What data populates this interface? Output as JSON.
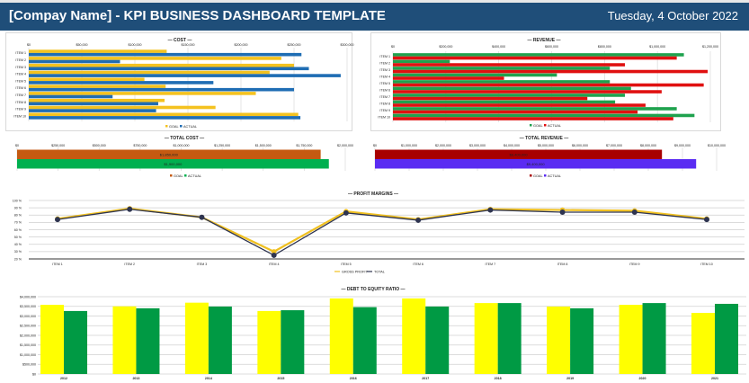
{
  "header": {
    "title": "[Compay Name] - KPI BUSINESS DASHBOARD TEMPLATE",
    "date": "Tuesday, 4 October 2022",
    "background": "#1f4e79"
  },
  "chart_data": [
    {
      "id": "cost",
      "type": "bar",
      "orientation": "horizontal",
      "title": "— COST —",
      "categories": [
        "ITEM 1",
        "ITEM 2",
        "ITEM 3",
        "ITEM 4",
        "ITEM 5",
        "ITEM 6",
        "ITEM 7",
        "ITEM 8",
        "ITEM 9",
        "ITEM 10"
      ],
      "series": [
        {
          "name": "GOAL",
          "color": "#f4c21f",
          "values": [
            130000,
            238000,
            250000,
            227000,
            109000,
            129000,
            214000,
            128000,
            176000,
            254000
          ]
        },
        {
          "name": "ACTUAL",
          "color": "#1f6db4",
          "values": [
            257000,
            86000,
            264000,
            294000,
            174000,
            250000,
            79000,
            122000,
            120000,
            256000
          ]
        }
      ],
      "xlim": [
        0,
        300000
      ],
      "ticks": [
        0,
        50000,
        100000,
        150000,
        200000,
        250000,
        300000
      ],
      "tick_labels": [
        "$0",
        "$50,000",
        "$100,000",
        "$150,000",
        "$200,000",
        "$250,000",
        "$300,000"
      ],
      "grid": true,
      "legend": "bottom"
    },
    {
      "id": "revenue",
      "type": "bar",
      "orientation": "horizontal",
      "title": "— REVENUE —",
      "categories": [
        "ITEM 1",
        "ITEM 2",
        "ITEM 3",
        "ITEM 4",
        "ITEM 5",
        "ITEM 6",
        "ITEM 7",
        "ITEM 8",
        "ITEM 9",
        "ITEM 10"
      ],
      "series": [
        {
          "name": "GOAL",
          "color": "#1fa24e",
          "values": [
            1100000,
            215000,
            820000,
            620000,
            820000,
            900000,
            877000,
            840000,
            1073000,
            1140000
          ]
        },
        {
          "name": "ACTUAL",
          "color": "#e01010",
          "values": [
            1073000,
            877000,
            1190000,
            420000,
            1175000,
            1016000,
            735000,
            955000,
            925000,
            1060000
          ]
        }
      ],
      "xlim": [
        0,
        1200000
      ],
      "ticks": [
        0,
        200000,
        400000,
        600000,
        800000,
        1000000,
        1200000
      ],
      "tick_labels": [
        "$0",
        "$200,000",
        "$400,000",
        "$600,000",
        "$800,000",
        "$1,000,000",
        "$1,200,000"
      ],
      "grid": true,
      "legend": "bottom"
    },
    {
      "id": "total_cost",
      "type": "bar",
      "orientation": "horizontal",
      "title": "— TOTAL COST —",
      "categories": [
        ""
      ],
      "series": [
        {
          "name": "GOAL",
          "color": "#c55a11",
          "values": [
            1850000
          ],
          "data_label": "$1,850,000"
        },
        {
          "name": "ACTUAL",
          "color": "#00b050",
          "values": [
            1900000
          ],
          "data_label": "$1,900,000"
        }
      ],
      "xlim": [
        0,
        2000000
      ],
      "ticks": [
        0,
        250000,
        500000,
        750000,
        1000000,
        1250000,
        1500000,
        1750000,
        2000000
      ],
      "tick_labels": [
        "$0",
        "$250,000",
        "$500,000",
        "$750,000",
        "$1,000,000",
        "$1,250,000",
        "$1,500,000",
        "$1,750,000",
        "$2,000,000"
      ],
      "grid": true,
      "legend": "bottom"
    },
    {
      "id": "total_revenue",
      "type": "bar",
      "orientation": "horizontal",
      "title": "— TOTAL REVENUE —",
      "categories": [
        ""
      ],
      "series": [
        {
          "name": "GOAL",
          "color": "#a80000",
          "values": [
            8400000
          ],
          "data_label": "$8,400,000"
        },
        {
          "name": "ACTUAL",
          "color": "#5a2cf2",
          "values": [
            9400000
          ],
          "data_label": "$9,400,000"
        }
      ],
      "xlim": [
        0,
        10000000
      ],
      "ticks": [
        0,
        1000000,
        2000000,
        3000000,
        4000000,
        5000000,
        6000000,
        7000000,
        8000000,
        9000000,
        10000000
      ],
      "tick_labels": [
        "$0",
        "$1,000,000",
        "$2,000,000",
        "$3,000,000",
        "$4,000,000",
        "$5,000,000",
        "$6,000,000",
        "$7,000,000",
        "$8,000,000",
        "$9,000,000",
        "$10,000,000"
      ],
      "grid": true,
      "legend": "bottom"
    },
    {
      "id": "profit_margins",
      "type": "line",
      "title": "— PROFIT MARGINS —",
      "categories": [
        "ITEM 1",
        "ITEM 2",
        "ITEM 3",
        "ITEM 4",
        "ITEM 5",
        "ITEM 6",
        "ITEM 7",
        "ITEM 8",
        "ITEM 9",
        "ITEM 10"
      ],
      "series": [
        {
          "name": "GROSS PROFIT",
          "color": "#f0c020",
          "values": [
            75,
            89,
            77,
            30,
            85,
            74,
            88,
            87,
            86,
            75
          ]
        },
        {
          "name": "TOTAL",
          "color": "#2e3450",
          "values": [
            74,
            88,
            77,
            25,
            83,
            73,
            87,
            84,
            84,
            74
          ],
          "markers": true
        }
      ],
      "ylim": [
        20,
        100
      ],
      "ticks": [
        20,
        30,
        40,
        50,
        60,
        70,
        80,
        90,
        100
      ],
      "tick_labels": [
        "20 %",
        "30 %",
        "40 %",
        "50 %",
        "60 %",
        "70 %",
        "80 %",
        "90 %",
        "100 %"
      ],
      "grid": true,
      "legend": "bottom"
    },
    {
      "id": "debt_to_equity",
      "type": "bar",
      "orientation": "vertical",
      "title": "— DEBT TO EQUITY RATIO —",
      "categories": [
        "2012",
        "2013",
        "2014",
        "2015",
        "2016",
        "2017",
        "2018",
        "2019",
        "2020",
        "2021"
      ],
      "series": [
        {
          "color": "#ffff00",
          "values": [
            3580000,
            3500000,
            3690000,
            3260000,
            3910000,
            3910000,
            3670000,
            3490000,
            3580000,
            3160000
          ]
        },
        {
          "color": "#009a44",
          "values": [
            3260000,
            3400000,
            3490000,
            3300000,
            3460000,
            3490000,
            3670000,
            3400000,
            3670000,
            3630000
          ]
        }
      ],
      "ylim": [
        0,
        4000000
      ],
      "ticks": [
        0,
        500000,
        1000000,
        1500000,
        2000000,
        2500000,
        3000000,
        3500000,
        4000000
      ],
      "tick_labels": [
        "$0",
        "$500,000",
        "$1,000,000",
        "$1,500,000",
        "$2,000,000",
        "$2,500,000",
        "$3,000,000",
        "$3,500,000",
        "$4,000,000"
      ],
      "grid": true
    }
  ]
}
